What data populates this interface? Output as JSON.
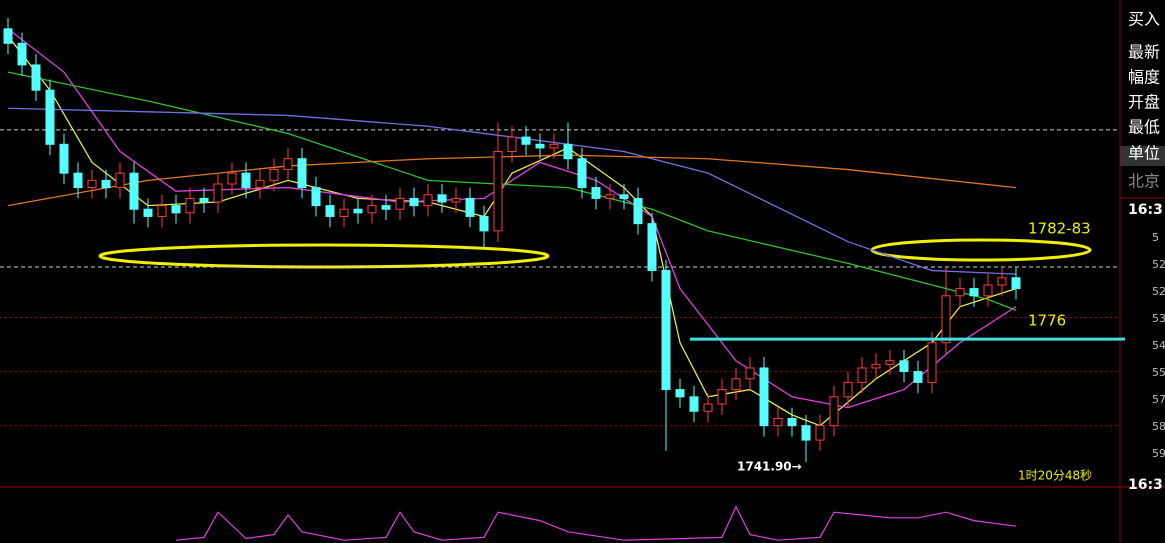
{
  "chart_data": {
    "type": "candlestick",
    "ylim": [
      1735,
      1870
    ],
    "up_color": "#ff3c3c",
    "down_color": "#54ffff",
    "grid_levels": [
      1782,
      1767,
      1752
    ],
    "reference_lines": [
      1834,
      1796
    ],
    "support_level": 1776,
    "resistance_label": "1782-83",
    "low_label": "1741.90→",
    "timer": "1时20分48秒",
    "candles": {
      "open": [
        1862,
        1858,
        1852,
        1845,
        1830,
        1822,
        1818,
        1820,
        1818,
        1822,
        1812,
        1810,
        1813,
        1811,
        1815,
        1814,
        1819,
        1822,
        1818,
        1820,
        1823,
        1826,
        1818,
        1813,
        1810,
        1812,
        1811,
        1813,
        1812,
        1815,
        1813,
        1816,
        1814,
        1815,
        1810,
        1806,
        1828,
        1832,
        1830,
        1829,
        1830,
        1826,
        1818,
        1815,
        1816,
        1815,
        1808,
        1795,
        1762,
        1760,
        1756,
        1758,
        1762,
        1765,
        1768,
        1752,
        1754,
        1752,
        1748,
        1752,
        1760,
        1764,
        1768,
        1769,
        1770,
        1767,
        1764,
        1775,
        1788,
        1790,
        1788,
        1791,
        1793
      ],
      "high": [
        1865,
        1861,
        1855,
        1848,
        1833,
        1825,
        1823,
        1823,
        1825,
        1825,
        1815,
        1816,
        1816,
        1818,
        1818,
        1822,
        1825,
        1825,
        1823,
        1826,
        1829,
        1829,
        1821,
        1816,
        1815,
        1815,
        1816,
        1816,
        1818,
        1818,
        1819,
        1819,
        1818,
        1818,
        1813,
        1836,
        1835,
        1835,
        1833,
        1833,
        1836,
        1829,
        1821,
        1819,
        1819,
        1818,
        1811,
        1798,
        1765,
        1763,
        1761,
        1765,
        1768,
        1771,
        1771,
        1757,
        1757,
        1755,
        1755,
        1763,
        1767,
        1771,
        1772,
        1773,
        1773,
        1770,
        1778,
        1796,
        1793,
        1793,
        1794,
        1796,
        1796
      ],
      "low": [
        1855,
        1849,
        1842,
        1827,
        1819,
        1815,
        1815,
        1815,
        1815,
        1808,
        1807,
        1807,
        1808,
        1808,
        1811,
        1811,
        1816,
        1815,
        1815,
        1817,
        1820,
        1815,
        1810,
        1807,
        1807,
        1808,
        1808,
        1809,
        1809,
        1810,
        1810,
        1811,
        1811,
        1807,
        1801,
        1803,
        1825,
        1827,
        1826,
        1826,
        1823,
        1815,
        1812,
        1812,
        1812,
        1805,
        1792,
        1745,
        1757,
        1753,
        1753,
        1755,
        1759,
        1762,
        1749,
        1749,
        1749,
        1741.9,
        1745,
        1749,
        1757,
        1761,
        1765,
        1766,
        1764,
        1761,
        1761,
        1772,
        1785,
        1785,
        1785,
        1788,
        1787
      ],
      "close": [
        1858,
        1852,
        1845,
        1830,
        1822,
        1818,
        1820,
        1818,
        1822,
        1812,
        1810,
        1813,
        1811,
        1815,
        1814,
        1819,
        1822,
        1818,
        1820,
        1823,
        1826,
        1818,
        1813,
        1810,
        1812,
        1811,
        1813,
        1812,
        1815,
        1813,
        1816,
        1814,
        1815,
        1810,
        1806,
        1828,
        1832,
        1830,
        1829,
        1830,
        1826,
        1818,
        1815,
        1816,
        1815,
        1808,
        1795,
        1762,
        1760,
        1756,
        1758,
        1762,
        1765,
        1768,
        1752,
        1754,
        1752,
        1748,
        1752,
        1760,
        1764,
        1768,
        1769,
        1770,
        1767,
        1764,
        1775,
        1788,
        1790,
        1788,
        1791,
        1793,
        1790
      ]
    },
    "moving_averages": [
      {
        "color": "#e8e84a",
        "x": [
          0,
          3,
          6,
          10,
          15,
          20,
          25,
          30,
          34,
          36,
          40,
          44,
          46,
          48,
          50,
          53,
          56,
          58,
          62,
          66,
          68,
          72
        ],
        "values": [
          1860,
          1845,
          1825,
          1813,
          1814,
          1820,
          1815,
          1814,
          1810,
          1822,
          1829,
          1818,
          1810,
          1775,
          1760,
          1762,
          1755,
          1752,
          1765,
          1775,
          1785,
          1790
        ]
      },
      {
        "color": "#e040e0",
        "x": [
          0,
          4,
          8,
          12,
          20,
          28,
          34,
          38,
          42,
          46,
          48,
          52,
          56,
          60,
          64,
          68,
          72
        ],
        "values": [
          1862,
          1850,
          1828,
          1817,
          1818,
          1814,
          1815,
          1825,
          1820,
          1810,
          1790,
          1770,
          1760,
          1757,
          1762,
          1775,
          1785
        ]
      },
      {
        "color": "#30c030",
        "x": [
          0,
          10,
          20,
          30,
          40,
          46,
          50,
          60,
          70,
          72
        ],
        "values": [
          1850,
          1842,
          1833,
          1820,
          1818,
          1812,
          1806,
          1797,
          1787,
          1784
        ]
      },
      {
        "color": "#7070e0",
        "x": [
          0,
          10,
          20,
          30,
          36,
          44,
          50,
          60,
          66,
          72
        ],
        "values": [
          1840,
          1839,
          1838,
          1835,
          1832,
          1828,
          1822,
          1803,
          1795,
          1794
        ]
      },
      {
        "color": "#e07820",
        "x": [
          0,
          10,
          20,
          30,
          40,
          50,
          60,
          72
        ],
        "values": [
          1813,
          1820,
          1824,
          1826,
          1827,
          1826,
          1823,
          1818
        ]
      }
    ],
    "indicator": {
      "color": "#e040e0",
      "ylim": [
        0,
        100
      ],
      "x": [
        12,
        14,
        15,
        17,
        19,
        20,
        21,
        24,
        27,
        28,
        29,
        31,
        34,
        35,
        36,
        38,
        40,
        44,
        51,
        52,
        53,
        55,
        58,
        59,
        61,
        63,
        65,
        67,
        69,
        72
      ],
      "values": [
        5,
        10,
        55,
        8,
        15,
        50,
        20,
        5,
        10,
        55,
        20,
        5,
        10,
        55,
        50,
        40,
        20,
        5,
        10,
        65,
        15,
        5,
        10,
        55,
        50,
        45,
        45,
        55,
        40,
        30
      ]
    },
    "right_axis_labels": [
      "5",
      "52",
      "52",
      "53",
      "54",
      "55",
      "57",
      "58",
      "59"
    ],
    "time_labels": [
      "16:3",
      "16:3"
    ]
  },
  "side_panel": {
    "labels": [
      "买入",
      "最新",
      "幅度",
      "开盘",
      "最低",
      "单位",
      "北京"
    ]
  }
}
